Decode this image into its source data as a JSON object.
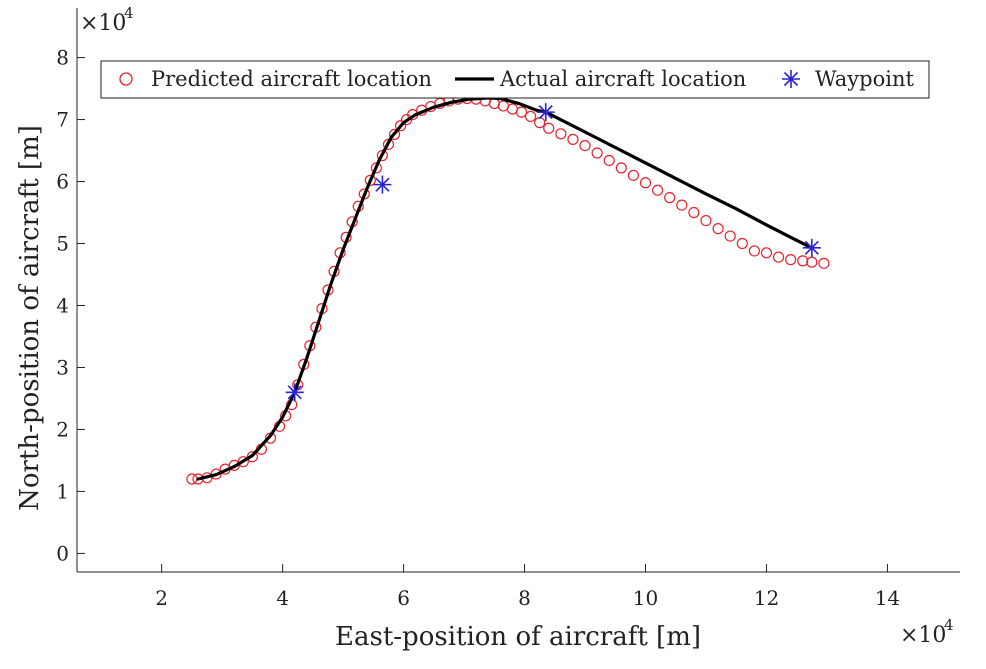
{
  "chart_data": {
    "type": "line",
    "xlabel": "East-position of aircraft [m]",
    "ylabel": "North-position of aircraft [m]",
    "x_exponent_label": "×10",
    "x_exponent_power": "4",
    "y_exponent_label": "×10",
    "y_exponent_power": "4",
    "xlim": [
      0.6,
      15.2
    ],
    "ylim": [
      -0.3,
      8.8
    ],
    "x_scale": 10000,
    "y_scale": 10000,
    "xticks": [
      2,
      4,
      6,
      8,
      10,
      12,
      14
    ],
    "yticks": [
      0,
      1,
      2,
      3,
      4,
      5,
      6,
      7,
      8
    ],
    "grid": false,
    "legend_position": "top-left",
    "series": [
      {
        "name": "Predicted aircraft location",
        "marker": "circle",
        "color": "#e8222d",
        "x": [
          2.5,
          2.6,
          2.75,
          2.9,
          3.05,
          3.2,
          3.35,
          3.5,
          3.65,
          3.8,
          3.95,
          4.05,
          4.15,
          4.25,
          4.35,
          4.45,
          4.55,
          4.65,
          4.75,
          4.85,
          4.95,
          5.05,
          5.15,
          5.25,
          5.35,
          5.45,
          5.55,
          5.65,
          5.75,
          5.85,
          5.95,
          6.05,
          6.15,
          6.3,
          6.45,
          6.6,
          6.75,
          6.9,
          7.05,
          7.2,
          7.35,
          7.5,
          7.65,
          7.8,
          7.95,
          8.1,
          8.25,
          8.4,
          8.6,
          8.8,
          9.0,
          9.2,
          9.4,
          9.6,
          9.8,
          10.0,
          10.2,
          10.4,
          10.6,
          10.8,
          11.0,
          11.2,
          11.4,
          11.6,
          11.8,
          12.0,
          12.2,
          12.4,
          12.6,
          12.75,
          12.95
        ],
        "y": [
          1.2,
          1.2,
          1.22,
          1.28,
          1.36,
          1.42,
          1.48,
          1.56,
          1.68,
          1.86,
          2.05,
          2.22,
          2.4,
          2.72,
          3.05,
          3.35,
          3.65,
          3.95,
          4.25,
          4.55,
          4.85,
          5.1,
          5.35,
          5.6,
          5.8,
          6.02,
          6.22,
          6.42,
          6.6,
          6.76,
          6.9,
          7.0,
          7.08,
          7.15,
          7.21,
          7.26,
          7.3,
          7.33,
          7.34,
          7.33,
          7.3,
          7.26,
          7.22,
          7.17,
          7.12,
          7.05,
          6.95,
          6.86,
          6.77,
          6.68,
          6.58,
          6.46,
          6.34,
          6.22,
          6.1,
          5.98,
          5.86,
          5.74,
          5.62,
          5.5,
          5.37,
          5.24,
          5.12,
          5.0,
          4.88,
          4.85,
          4.78,
          4.74,
          4.72,
          4.7,
          4.68
        ]
      },
      {
        "name": "Actual aircraft location",
        "marker": "line",
        "color": "#000000",
        "x": [
          2.6,
          2.9,
          3.2,
          3.5,
          3.8,
          4.0,
          4.2,
          4.4,
          4.6,
          4.8,
          5.0,
          5.2,
          5.4,
          5.6,
          5.8,
          6.0,
          6.2,
          6.5,
          6.8,
          7.1,
          7.4,
          7.6,
          7.9,
          8.2,
          8.35,
          9.0,
          9.5,
          10.0,
          10.5,
          11.0,
          11.5,
          12.0,
          12.4,
          12.75
        ],
        "y": [
          1.2,
          1.27,
          1.4,
          1.58,
          1.9,
          2.2,
          2.6,
          3.15,
          3.75,
          4.35,
          4.9,
          5.4,
          5.9,
          6.35,
          6.72,
          6.95,
          7.08,
          7.2,
          7.28,
          7.33,
          7.35,
          7.34,
          7.26,
          7.15,
          7.12,
          6.8,
          6.55,
          6.3,
          6.05,
          5.8,
          5.56,
          5.3,
          5.1,
          4.93
        ]
      },
      {
        "name": "Waypoint",
        "marker": "asterisk",
        "color": "#2b22d6",
        "x": [
          4.2,
          5.65,
          8.35,
          12.75
        ],
        "y": [
          2.6,
          5.95,
          7.12,
          4.93
        ]
      }
    ]
  }
}
